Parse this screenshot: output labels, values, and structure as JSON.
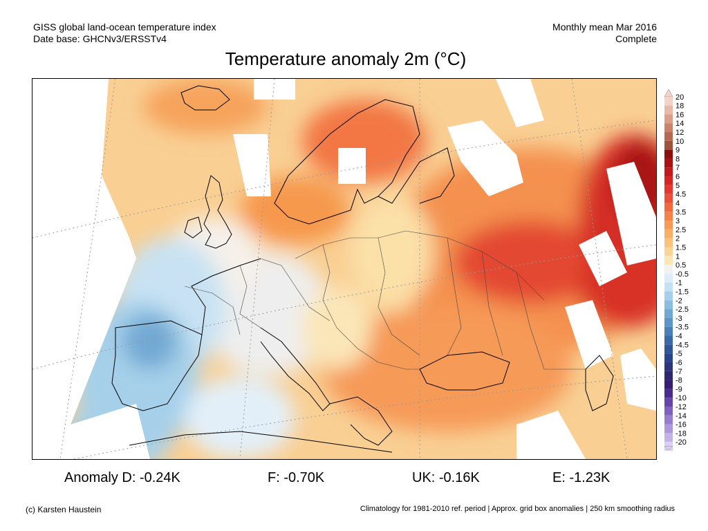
{
  "header": {
    "dataset_line": "GISS global land-ocean temperature index",
    "base_line": "Date base: GHCNv3/ERSSTv4",
    "period_line": "Monthly mean Mar 2016",
    "status_line": "Complete"
  },
  "title": "Temperature anomaly 2m (°C)",
  "legend": {
    "levels": [
      {
        "label": "20",
        "color": "#f3d2c8"
      },
      {
        "label": "18",
        "color": "#e8b9a6"
      },
      {
        "label": "16",
        "color": "#dba08a"
      },
      {
        "label": "14",
        "color": "#c98369"
      },
      {
        "label": "12",
        "color": "#b66a50"
      },
      {
        "label": "10",
        "color": "#a0523a"
      },
      {
        "label": "9",
        "color": "#8b0f0f"
      },
      {
        "label": "8",
        "color": "#a81212"
      },
      {
        "label": "7",
        "color": "#c21a1a"
      },
      {
        "label": "6",
        "color": "#d52626"
      },
      {
        "label": "5",
        "color": "#e23a2e"
      },
      {
        "label": "4.5",
        "color": "#eb5138"
      },
      {
        "label": "4",
        "color": "#f16a3f"
      },
      {
        "label": "3.5",
        "color": "#f4834a"
      },
      {
        "label": "3",
        "color": "#f69a58"
      },
      {
        "label": "2.5",
        "color": "#f8b067"
      },
      {
        "label": "2",
        "color": "#fac37d"
      },
      {
        "label": "1.5",
        "color": "#fbd598"
      },
      {
        "label": "1",
        "color": "#fbe7b6"
      },
      {
        "label": "0.5",
        "color": "#f2f2f2"
      },
      {
        "label": "-0.5",
        "color": "#dcecf8"
      },
      {
        "label": "-1",
        "color": "#c4e0f3"
      },
      {
        "label": "-1.5",
        "color": "#a6d0ea"
      },
      {
        "label": "-2",
        "color": "#8bbddf"
      },
      {
        "label": "-2.5",
        "color": "#72a9d3"
      },
      {
        "label": "-3",
        "color": "#5c95c6"
      },
      {
        "label": "-3.5",
        "color": "#4a80b8"
      },
      {
        "label": "-4",
        "color": "#3b6aa9"
      },
      {
        "label": "-4.5",
        "color": "#2f5699"
      },
      {
        "label": "-5",
        "color": "#2a448a"
      },
      {
        "label": "-6",
        "color": "#2c357c"
      },
      {
        "label": "-7",
        "color": "#2e286f"
      },
      {
        "label": "-8",
        "color": "#361f73"
      },
      {
        "label": "-9",
        "color": "#4a2c8e"
      },
      {
        "label": "-10",
        "color": "#6545a8"
      },
      {
        "label": "-12",
        "color": "#7e60be"
      },
      {
        "label": "-14",
        "color": "#977ccf"
      },
      {
        "label": "-16",
        "color": "#ad98dc"
      },
      {
        "label": "-18",
        "color": "#c3b4e8"
      },
      {
        "label": "-20",
        "color": "#dad0f2"
      }
    ]
  },
  "anomalies": {
    "d": "Anomaly D: -0.24K",
    "f": "F: -0.70K",
    "uk": "UK: -0.16K",
    "e": "E: -1.23K"
  },
  "footer": {
    "credit": "(c) Karsten Haustein",
    "note": "Climatology for 1981-2010 ref. period | Approx. grid box anomalies | 250 km smoothing radius"
  },
  "map": {
    "region": "Europe",
    "missing_data_color": "#ffffff",
    "border_color": "#000000"
  }
}
